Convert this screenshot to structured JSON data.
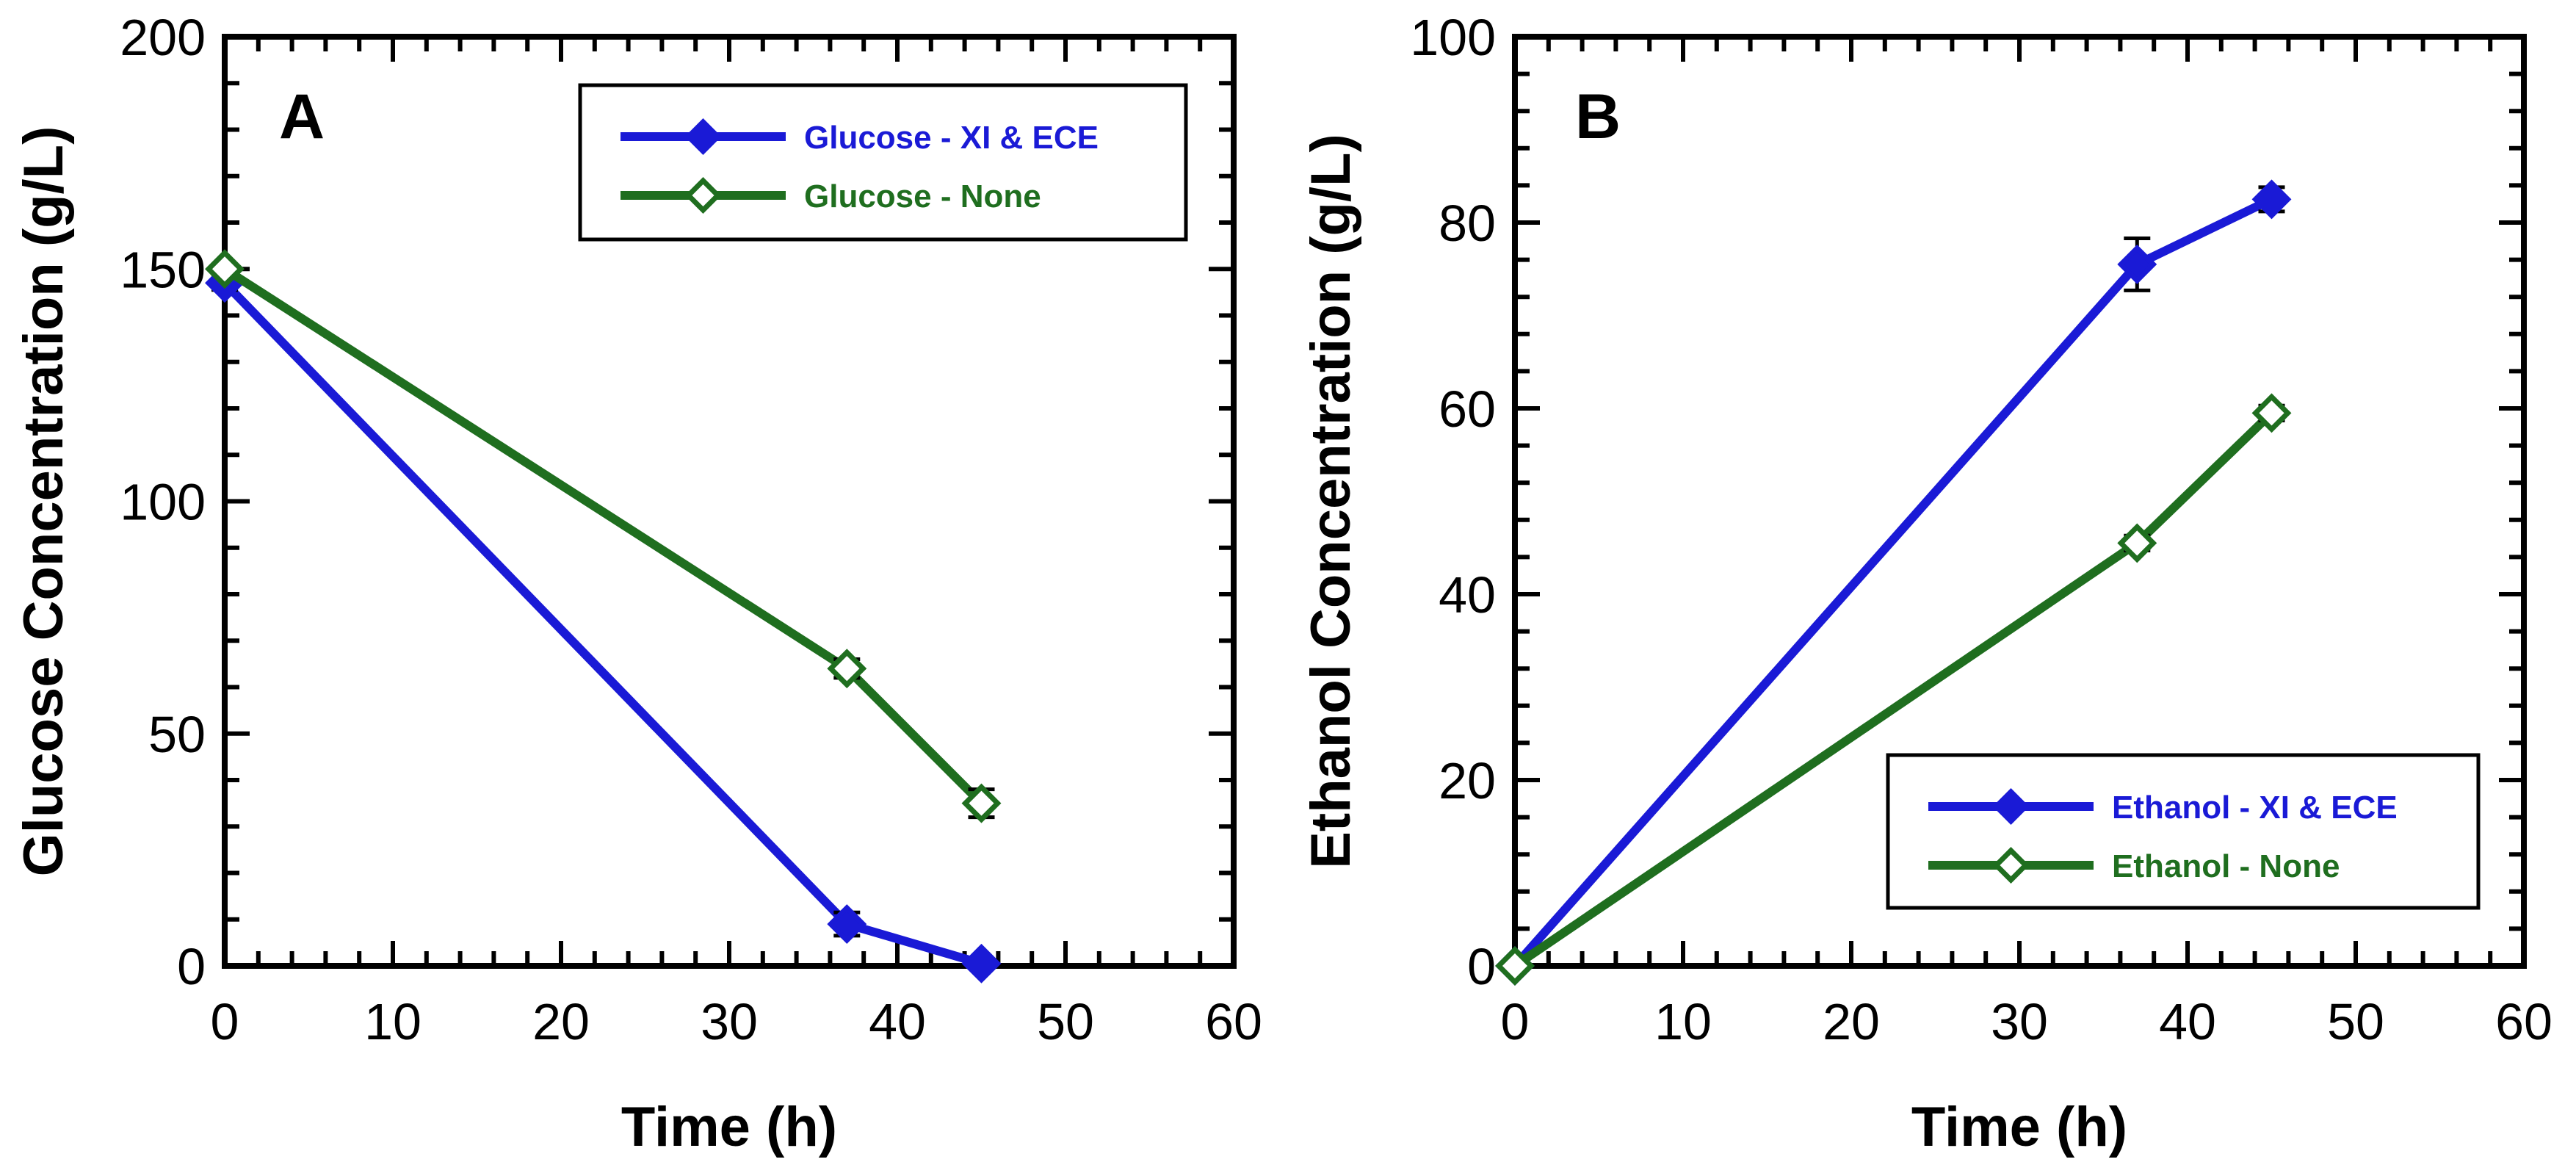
{
  "chart_data": [
    {
      "type": "line",
      "panel_label": "A",
      "xlabel": "Time (h)",
      "ylabel": "Glucose Concentration (g/L)",
      "xlim": [
        0,
        60
      ],
      "ylim": [
        0,
        200
      ],
      "xticks": [
        0,
        10,
        20,
        30,
        40,
        50,
        60
      ],
      "yticks": [
        0,
        50,
        100,
        150,
        200
      ],
      "xtick_labels": [
        "0",
        "10",
        "20",
        "30",
        "40",
        "50",
        "60"
      ],
      "ytick_labels": [
        "0",
        "50",
        "100",
        "150",
        "200"
      ],
      "legend_position": "top-right",
      "series": [
        {
          "name": "Glucose - XI & ECE",
          "color": "#1a1ad6",
          "marker": "filled-diamond",
          "x": [
            0,
            37,
            45
          ],
          "y": [
            147,
            9,
            0.5
          ],
          "err": [
            1.5,
            2.5,
            0.5
          ]
        },
        {
          "name": "Glucose - None",
          "color": "#1f6e1f",
          "marker": "open-diamond",
          "x": [
            0,
            37,
            45
          ],
          "y": [
            150,
            64,
            35
          ],
          "err": [
            1,
            2,
            3
          ]
        }
      ]
    },
    {
      "type": "line",
      "panel_label": "B",
      "xlabel": "Time (h)",
      "ylabel": "Ethanol Concentration (g/L)",
      "xlim": [
        0,
        60
      ],
      "ylim": [
        0,
        100
      ],
      "xticks": [
        0,
        10,
        20,
        30,
        40,
        50,
        60
      ],
      "yticks": [
        0,
        20,
        40,
        60,
        80,
        100
      ],
      "xtick_labels": [
        "0",
        "10",
        "20",
        "30",
        "40",
        "50",
        "60"
      ],
      "ytick_labels": [
        "0",
        "20",
        "40",
        "60",
        "80",
        "100"
      ],
      "legend_position": "bottom-right",
      "series": [
        {
          "name": "Ethanol - XI & ECE",
          "color": "#1a1ad6",
          "marker": "filled-diamond",
          "x": [
            0,
            37,
            45
          ],
          "y": [
            0,
            75.5,
            82.5
          ],
          "err": [
            0.3,
            2.8,
            1.3
          ]
        },
        {
          "name": "Ethanol - None",
          "color": "#1f6e1f",
          "marker": "open-diamond",
          "x": [
            0,
            37,
            45
          ],
          "y": [
            0,
            45.5,
            59.5
          ],
          "err": [
            0.3,
            0.8,
            0.8
          ]
        }
      ]
    }
  ]
}
